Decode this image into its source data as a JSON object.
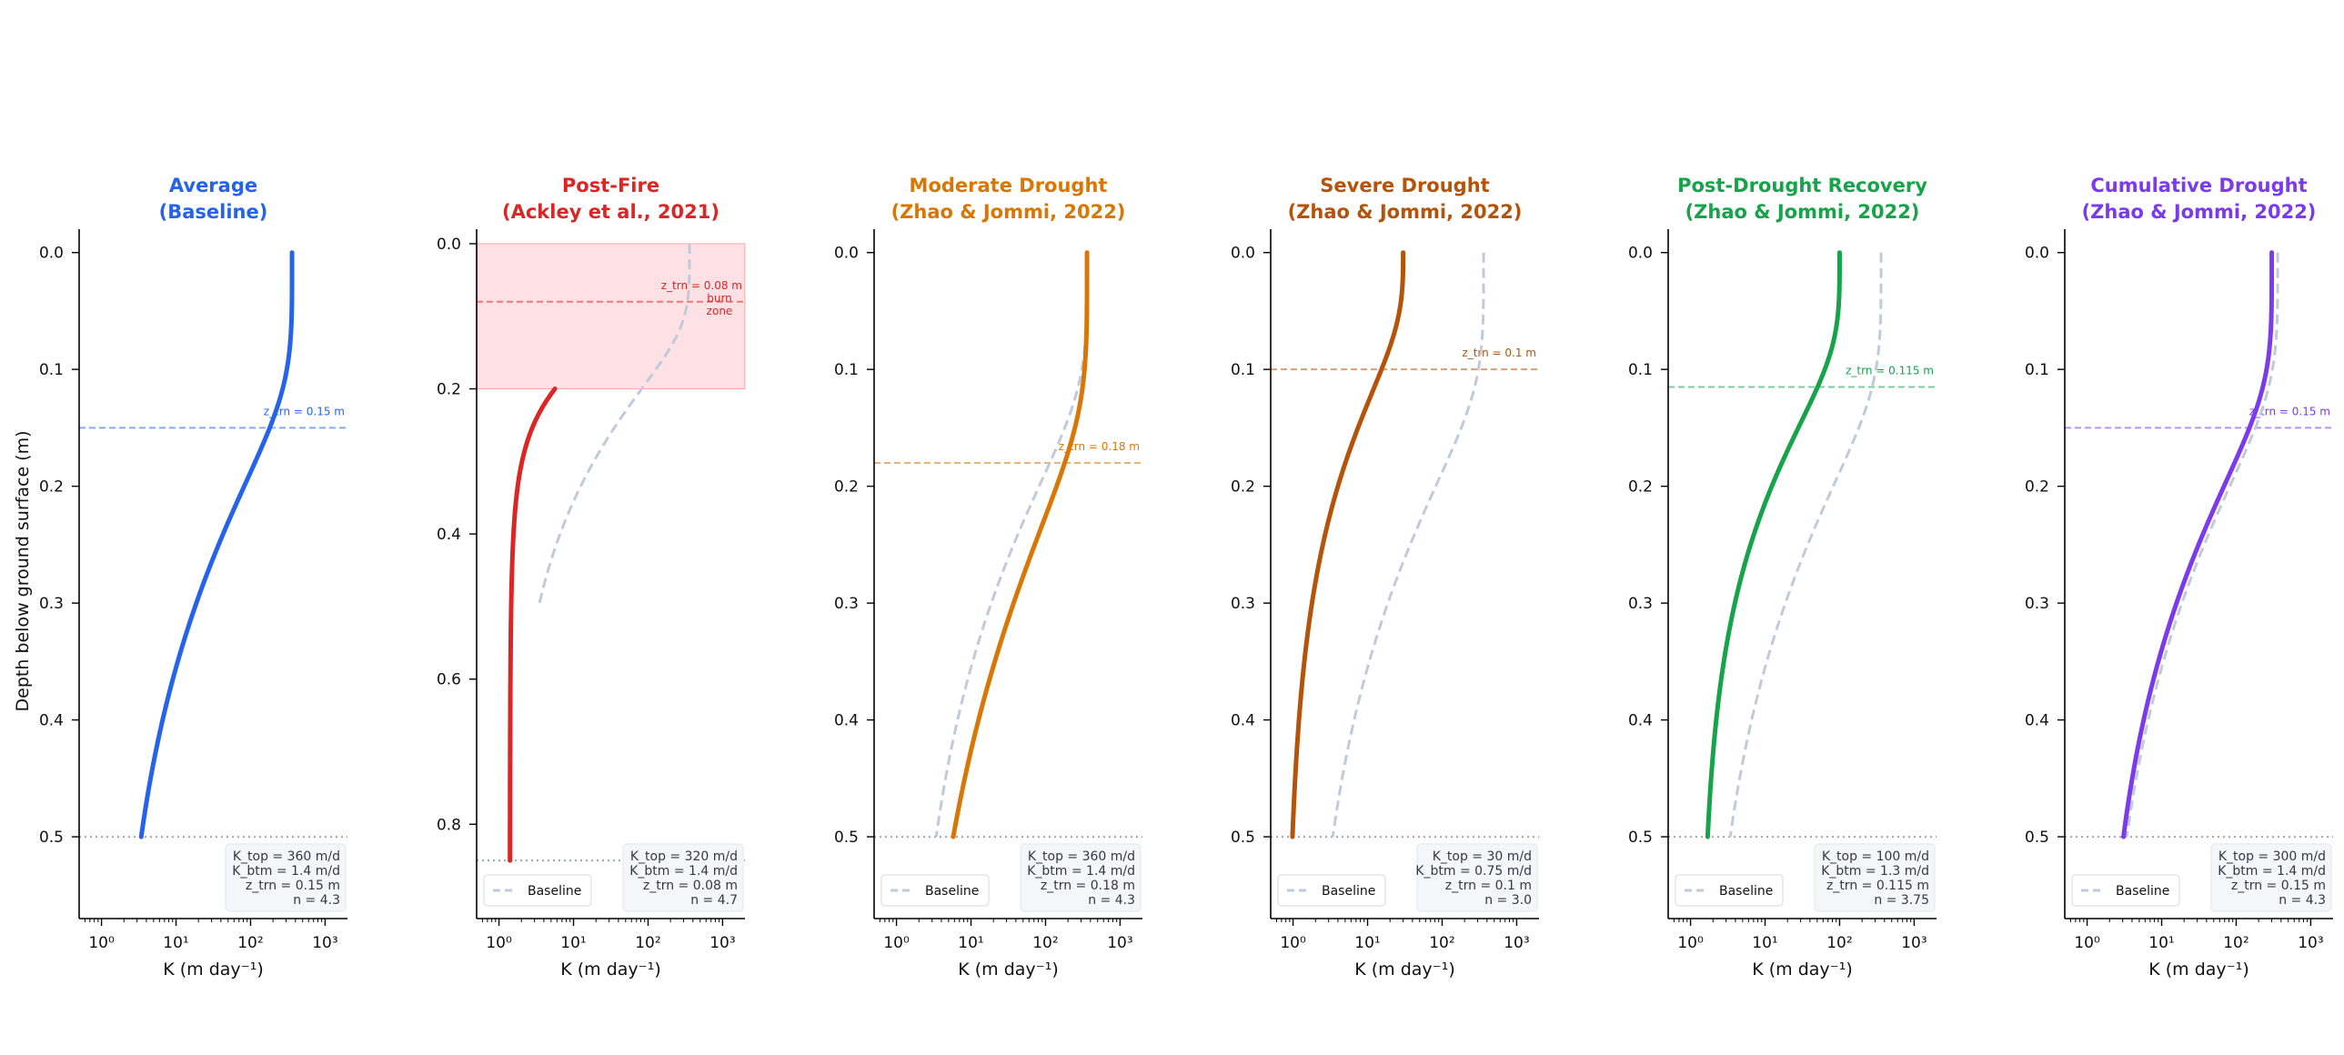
{
  "figure": {
    "ylabel": "Depth below ground surface  (m)",
    "xlabel": "K  (m day⁻¹)",
    "baseline_label": "Baseline"
  },
  "chart_data": [
    {
      "type": "line",
      "title_line1": "Average",
      "title_line2": "(Baseline)",
      "color": "#2563eb",
      "xscale": "log",
      "xlim_exponent": [
        -0.3,
        3.3
      ],
      "xticks": [
        "10⁰",
        "10¹",
        "10²",
        "10³"
      ],
      "ylim": [
        0.57,
        -0.02
      ],
      "yticks": [
        "0.0",
        "0.1",
        "0.2",
        "0.3",
        "0.4",
        "0.5"
      ],
      "ytick_values": [
        0,
        0.1,
        0.2,
        0.3,
        0.4,
        0.5
      ],
      "depth_bottom": 0.5,
      "params": {
        "K_top": 360,
        "K_btm": 1.4,
        "z_trn": 0.15,
        "n": 4.3
      },
      "param_lines": [
        "K_top = 360 m/d",
        "K_btm = 1.4 m/d",
        "z_trn = 0.15 m",
        "n  =  4.3"
      ],
      "ztrn_label": "z_trn = 0.15 m",
      "show_baseline": false,
      "legend": false
    },
    {
      "type": "line",
      "title_line1": "Post-Fire",
      "title_line2": "(Ackley et al., 2021)",
      "color": "#dc2626",
      "xscale": "log",
      "xlim_exponent": [
        -0.3,
        3.3
      ],
      "xticks": [
        "10⁰",
        "10¹",
        "10²",
        "10³"
      ],
      "ylim": [
        0.93,
        -0.02
      ],
      "yticks": [
        "0.0",
        "0.2",
        "0.4",
        "0.6",
        "0.8"
      ],
      "ytick_values": [
        0,
        0.2,
        0.4,
        0.6,
        0.8
      ],
      "depth_bottom": 0.85,
      "curve_start": 0.2,
      "params": {
        "K_top": 320,
        "K_btm": 1.4,
        "z_trn": 0.08,
        "n": 4.7
      },
      "param_lines": [
        "K_top = 320 m/d",
        "K_btm = 1.4 m/d",
        "z_trn = 0.08 m",
        "n  =  4.7"
      ],
      "ztrn_label": "z_trn = 0.08 m",
      "burn_zone": [
        0,
        0.2
      ],
      "burn_label_lines": [
        "burn",
        "zone"
      ],
      "show_baseline": true,
      "baseline_depth": 0.5,
      "legend": true
    },
    {
      "type": "line",
      "title_line1": "Moderate Drought",
      "title_line2": "(Zhao & Jommi, 2022)",
      "color": "#d97706",
      "xscale": "log",
      "xlim_exponent": [
        -0.3,
        3.3
      ],
      "xticks": [
        "10⁰",
        "10¹",
        "10²",
        "10³"
      ],
      "ylim": [
        0.57,
        -0.02
      ],
      "yticks": [
        "0.0",
        "0.1",
        "0.2",
        "0.3",
        "0.4",
        "0.5"
      ],
      "ytick_values": [
        0,
        0.1,
        0.2,
        0.3,
        0.4,
        0.5
      ],
      "depth_bottom": 0.5,
      "params": {
        "K_top": 360,
        "K_btm": 1.4,
        "z_trn": 0.18,
        "n": 4.3
      },
      "param_lines": [
        "K_top = 360 m/d",
        "K_btm = 1.4 m/d",
        "z_trn = 0.18 m",
        "n  =  4.3"
      ],
      "ztrn_label": "z_trn = 0.18 m",
      "show_baseline": true,
      "baseline_depth": 0.5,
      "legend": true
    },
    {
      "type": "line",
      "title_line1": "Severe Drought",
      "title_line2": "(Zhao & Jommi, 2022)",
      "color": "#b45309",
      "xscale": "log",
      "xlim_exponent": [
        -0.3,
        3.3
      ],
      "xticks": [
        "10⁰",
        "10¹",
        "10²",
        "10³"
      ],
      "ylim": [
        0.57,
        -0.02
      ],
      "yticks": [
        "0.0",
        "0.1",
        "0.2",
        "0.3",
        "0.4",
        "0.5"
      ],
      "ytick_values": [
        0,
        0.1,
        0.2,
        0.3,
        0.4,
        0.5
      ],
      "depth_bottom": 0.5,
      "params": {
        "K_top": 30,
        "K_btm": 0.75,
        "z_trn": 0.1,
        "n": 3.0
      },
      "param_lines": [
        "K_top = 30 m/d",
        "K_btm = 0.75 m/d",
        "z_trn = 0.1 m",
        "n  =  3.0"
      ],
      "ztrn_label": "z_trn = 0.1 m",
      "show_baseline": true,
      "baseline_depth": 0.5,
      "legend": true
    },
    {
      "type": "line",
      "title_line1": "Post-Drought Recovery",
      "title_line2": "(Zhao & Jommi, 2022)",
      "color": "#16a34a",
      "xscale": "log",
      "xlim_exponent": [
        -0.3,
        3.3
      ],
      "xticks": [
        "10⁰",
        "10¹",
        "10²",
        "10³"
      ],
      "ylim": [
        0.57,
        -0.02
      ],
      "yticks": [
        "0.0",
        "0.1",
        "0.2",
        "0.3",
        "0.4",
        "0.5"
      ],
      "ytick_values": [
        0,
        0.1,
        0.2,
        0.3,
        0.4,
        0.5
      ],
      "depth_bottom": 0.5,
      "params": {
        "K_top": 100,
        "K_btm": 1.3,
        "z_trn": 0.115,
        "n": 3.75
      },
      "param_lines": [
        "K_top = 100 m/d",
        "K_btm = 1.3 m/d",
        "z_trn = 0.115 m",
        "n  =  3.75"
      ],
      "ztrn_label": "z_trn = 0.115 m",
      "show_baseline": true,
      "baseline_depth": 0.5,
      "legend": true
    },
    {
      "type": "line",
      "title_line1": "Cumulative Drought",
      "title_line2": "(Zhao & Jommi, 2022)",
      "color": "#7c3aed",
      "xscale": "log",
      "xlim_exponent": [
        -0.3,
        3.3
      ],
      "xticks": [
        "10⁰",
        "10¹",
        "10²",
        "10³"
      ],
      "ylim": [
        0.57,
        -0.02
      ],
      "yticks": [
        "0.0",
        "0.1",
        "0.2",
        "0.3",
        "0.4",
        "0.5"
      ],
      "ytick_values": [
        0,
        0.1,
        0.2,
        0.3,
        0.4,
        0.5
      ],
      "depth_bottom": 0.5,
      "params": {
        "K_top": 300,
        "K_btm": 1.4,
        "z_trn": 0.15,
        "n": 4.3
      },
      "param_lines": [
        "K_top = 300 m/d",
        "K_btm = 1.4 m/d",
        "z_trn = 0.15 m",
        "n  =  4.3"
      ],
      "ztrn_label": "z_trn = 0.15 m",
      "show_baseline": true,
      "baseline_depth": 0.5,
      "legend": true
    }
  ]
}
